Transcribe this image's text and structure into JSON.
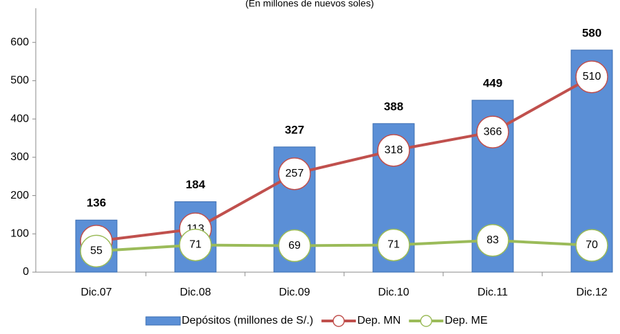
{
  "chart_data": {
    "type": "bar",
    "subtitle": "(En millones de nuevos soles)",
    "categories": [
      "Dic.07",
      "Dic.08",
      "Dic.09",
      "Dic.10",
      "Dic.11",
      "Dic.12"
    ],
    "series": [
      {
        "name": "Depósitos (millones de S/.)",
        "type": "bar",
        "color": "#5b8fd6",
        "values": [
          136,
          184,
          327,
          388,
          449,
          580
        ]
      },
      {
        "name": "Dep. MN",
        "type": "line",
        "color": "#c0504d",
        "values": [
          81,
          113,
          257,
          318,
          366,
          510
        ]
      },
      {
        "name": "Dep. ME",
        "type": "line",
        "color": "#9bbb59",
        "values": [
          55,
          71,
          69,
          71,
          83,
          70
        ]
      }
    ],
    "ylim": [
      0,
      700
    ],
    "yticks": [
      0,
      100,
      200,
      300,
      400,
      500,
      600
    ],
    "legend": "bottom"
  }
}
